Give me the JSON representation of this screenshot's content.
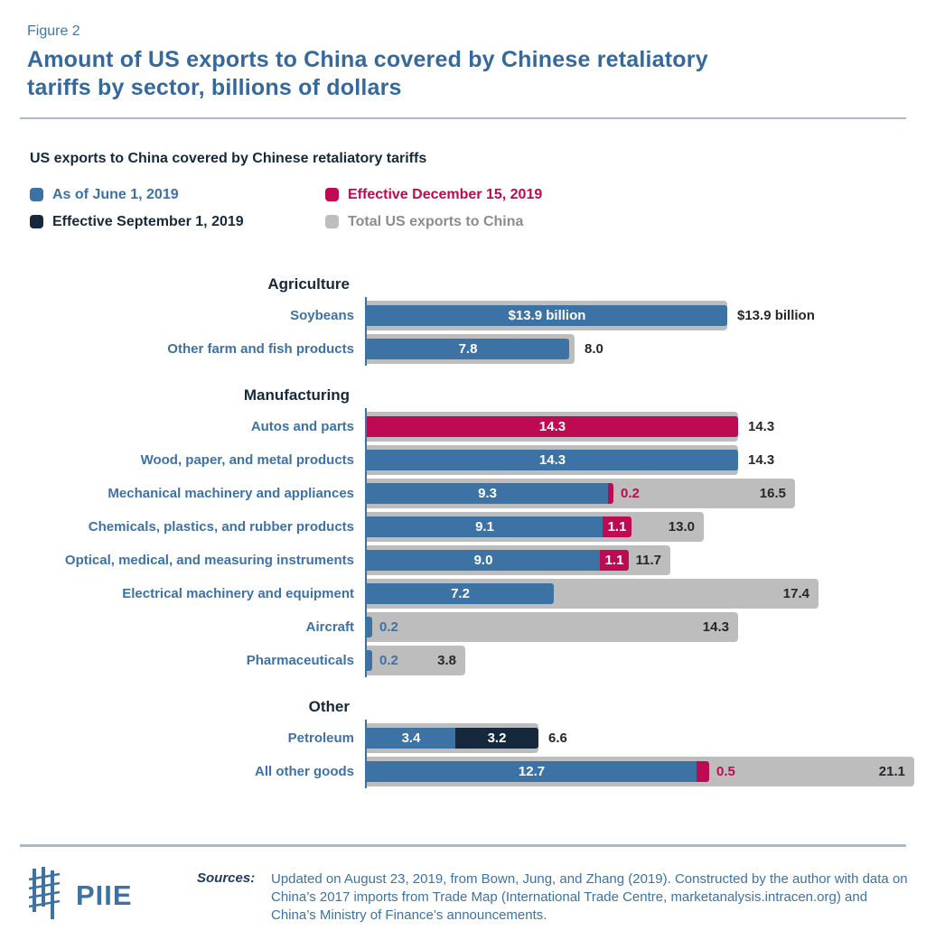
{
  "figure_label": "Figure 2",
  "title": "Amount of US exports to China covered by Chinese retaliatory tariffs by sector, billions of dollars",
  "legend": {
    "heading": "US exports to China covered by Chinese retaliatory tariffs",
    "items": [
      {
        "name": "as-of-june-1-2019",
        "label": "As of June 1, 2019",
        "swatch_color": "#3D72A4",
        "text_color": "#3D72A4"
      },
      {
        "name": "effective-september-1-2019",
        "label": "Effective September 1, 2019",
        "swatch_color": "#16293C",
        "text_color": "#16293C"
      },
      {
        "name": "effective-december-15-2019",
        "label": "Effective December 15, 2019",
        "swatch_color": "#BE0A53",
        "text_color": "#BE0A53"
      },
      {
        "name": "total-us-exports-to-china",
        "label": "Total US exports to China",
        "swatch_color": "#BDBDBD",
        "text_color": "#8C8C8C"
      }
    ]
  },
  "chart_data": {
    "type": "bar",
    "orientation": "horizontal",
    "unit": "billions of US dollars",
    "max_value": 21.1,
    "series_names": [
      "As of June 1, 2019",
      "Effective September 1, 2019",
      "Effective December 15, 2019",
      "Total US exports to China"
    ],
    "colors": {
      "june": "#3D72A4",
      "september": "#16293C",
      "december": "#BE0A53",
      "total": "#BDBDBD",
      "axis": "#3D72A4",
      "inside_value": "#FFFFFF",
      "total_value": "#26272B"
    },
    "sections": [
      {
        "name": "Agriculture",
        "rows": [
          {
            "label": "Soybeans",
            "segments": [
              {
                "series": "june",
                "value": 13.9,
                "label": "$13.9 billion",
                "label_style": "inside"
              }
            ],
            "total": {
              "value": 13.9,
              "label": "$13.9 billion",
              "label_pos": "outside"
            }
          },
          {
            "label": "Other farm and fish products",
            "segments": [
              {
                "series": "june",
                "value": 7.8,
                "label": "7.8",
                "label_style": "inside"
              }
            ],
            "total": {
              "value": 8.0,
              "label": "8.0",
              "label_pos": "outside"
            }
          }
        ]
      },
      {
        "name": "Manufacturing",
        "rows": [
          {
            "label": "Autos and parts",
            "segments": [
              {
                "series": "december",
                "value": 14.3,
                "label": "14.3",
                "label_style": "inside"
              }
            ],
            "total": {
              "value": 14.3,
              "label": "14.3",
              "label_pos": "outside"
            }
          },
          {
            "label": "Wood, paper, and metal products",
            "segments": [
              {
                "series": "june",
                "value": 14.3,
                "label": "14.3",
                "label_style": "inside"
              }
            ],
            "total": {
              "value": 14.3,
              "label": "14.3",
              "label_pos": "outside"
            }
          },
          {
            "label": "Mechanical machinery and appliances",
            "segments": [
              {
                "series": "june",
                "value": 9.3,
                "label": "9.3",
                "label_style": "inside"
              },
              {
                "series": "december",
                "value": 0.2,
                "label": "0.2",
                "label_style": "after"
              }
            ],
            "total": {
              "value": 16.5,
              "label": "16.5",
              "label_pos": "inside"
            }
          },
          {
            "label": "Chemicals, plastics, and rubber products",
            "segments": [
              {
                "series": "june",
                "value": 9.1,
                "label": "9.1",
                "label_style": "inside"
              },
              {
                "series": "december",
                "value": 1.1,
                "label": "1.1",
                "label_style": "inside"
              }
            ],
            "total": {
              "value": 13.0,
              "label": "13.0",
              "label_pos": "inside"
            }
          },
          {
            "label": "Optical, medical, and measuring instruments",
            "segments": [
              {
                "series": "june",
                "value": 9.0,
                "label": "9.0",
                "label_style": "inside"
              },
              {
                "series": "december",
                "value": 1.1,
                "label": "1.1",
                "label_style": "inside"
              }
            ],
            "total": {
              "value": 11.7,
              "label": "11.7",
              "label_pos": "inside"
            }
          },
          {
            "label": "Electrical machinery and equipment",
            "segments": [
              {
                "series": "june",
                "value": 7.2,
                "label": "7.2",
                "label_style": "inside"
              }
            ],
            "total": {
              "value": 17.4,
              "label": "17.4",
              "label_pos": "inside"
            }
          },
          {
            "label": "Aircraft",
            "segments": [
              {
                "series": "june",
                "value": 0.2,
                "label": "0.2",
                "label_style": "after"
              }
            ],
            "total": {
              "value": 14.3,
              "label": "14.3",
              "label_pos": "inside"
            }
          },
          {
            "label": "Pharmaceuticals",
            "segments": [
              {
                "series": "june",
                "value": 0.2,
                "label": "0.2",
                "label_style": "after"
              }
            ],
            "total": {
              "value": 3.8,
              "label": "3.8",
              "label_pos": "inside"
            }
          }
        ]
      },
      {
        "name": "Other",
        "rows": [
          {
            "label": "Petroleum",
            "segments": [
              {
                "series": "june",
                "value": 3.4,
                "label": "3.4",
                "label_style": "inside"
              },
              {
                "series": "september",
                "value": 3.2,
                "label": "3.2",
                "label_style": "inside"
              }
            ],
            "total": {
              "value": 6.6,
              "label": "6.6",
              "label_pos": "outside"
            }
          },
          {
            "label": "All other goods",
            "segments": [
              {
                "series": "june",
                "value": 12.7,
                "label": "12.7",
                "label_style": "inside"
              },
              {
                "series": "december",
                "value": 0.5,
                "label": "0.5",
                "label_style": "after"
              }
            ],
            "total": {
              "value": 21.1,
              "label": "21.1",
              "label_pos": "inside"
            }
          }
        ]
      }
    ]
  },
  "footer": {
    "logo_text": "PIIE",
    "sources_label": "Sources:",
    "sources_text": "Updated on August 23, 2019, from Bown, Jung, and Zhang (2019). Constructed by the author with data on China’s 2017 imports from Trade Map (International Trade Centre, marketanalysis.intracen.org) and China’s Ministry of Finance’s announcements."
  }
}
